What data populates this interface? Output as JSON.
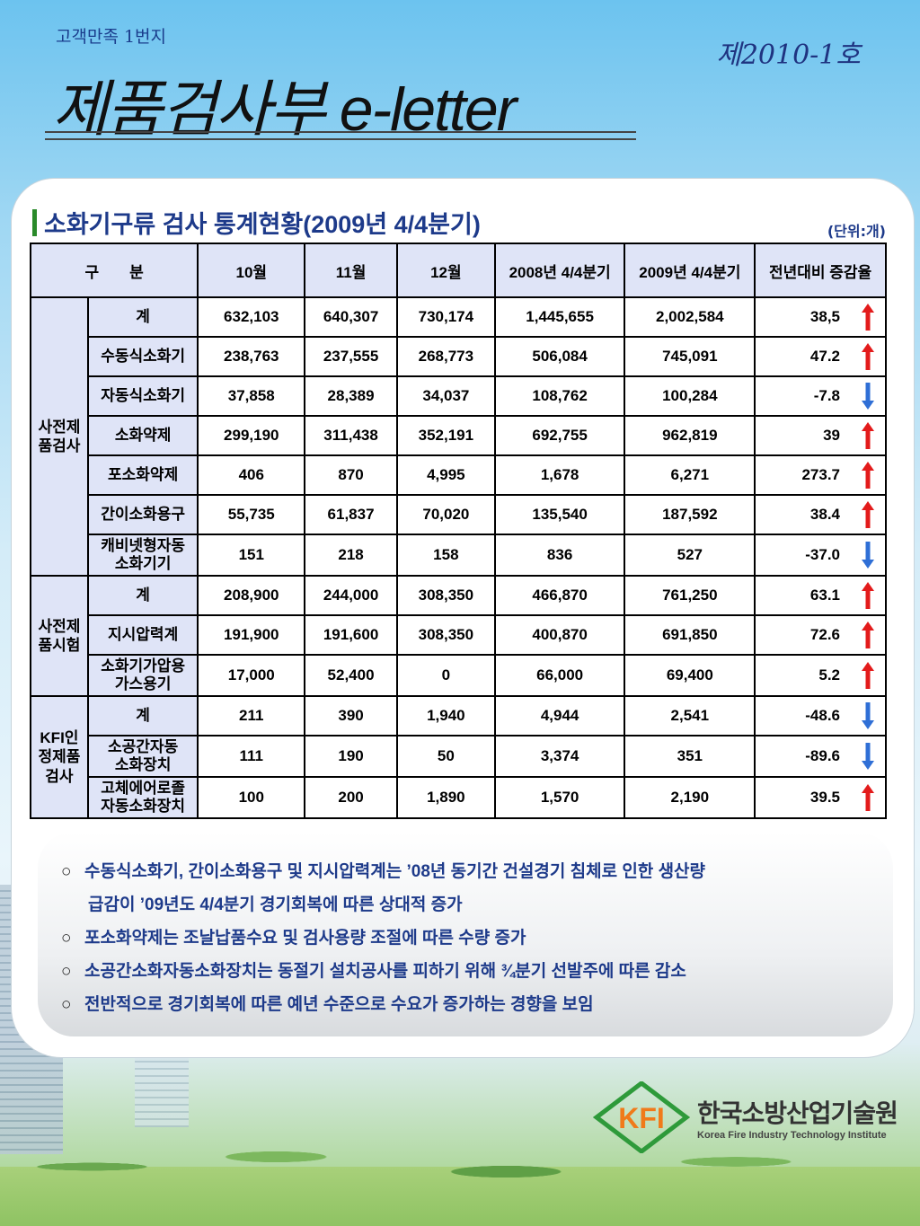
{
  "header": {
    "subtitle": "고객만족 1번지",
    "issue": "제2010-1호",
    "title": "제품검사부 e-letter"
  },
  "section": {
    "title": "소화기구류 검사 통계현황(2009년 4/4분기)",
    "unit": "(단위:개)"
  },
  "table": {
    "headers": [
      "구　　분",
      "10월",
      "11월",
      "12월",
      "2008년 4/4분기",
      "2009년 4/4분기",
      "전년대비 증감율"
    ],
    "groups": [
      {
        "label": "사전제\n품검사",
        "rows": [
          {
            "name": "계",
            "oct": "632,103",
            "nov": "640,307",
            "dec": "730,174",
            "q2008": "1,445,655",
            "q2009": "2,002,584",
            "change": "38,5",
            "trend": "up"
          },
          {
            "name": "수동식소화기",
            "oct": "238,763",
            "nov": "237,555",
            "dec": "268,773",
            "q2008": "506,084",
            "q2009": "745,091",
            "change": "47.2",
            "trend": "up"
          },
          {
            "name": "자동식소화기",
            "oct": "37,858",
            "nov": "28,389",
            "dec": "34,037",
            "q2008": "108,762",
            "q2009": "100,284",
            "change": "-7.8",
            "trend": "down"
          },
          {
            "name": "소화약제",
            "oct": "299,190",
            "nov": "311,438",
            "dec": "352,191",
            "q2008": "692,755",
            "q2009": "962,819",
            "change": "39",
            "trend": "up"
          },
          {
            "name": "포소화약제",
            "oct": "406",
            "nov": "870",
            "dec": "4,995",
            "q2008": "1,678",
            "q2009": "6,271",
            "change": "273.7",
            "trend": "up"
          },
          {
            "name": "간이소화용구",
            "oct": "55,735",
            "nov": "61,837",
            "dec": "70,020",
            "q2008": "135,540",
            "q2009": "187,592",
            "change": "38.4",
            "trend": "up"
          },
          {
            "name": "캐비넷형자동\n소화기기",
            "oct": "151",
            "nov": "218",
            "dec": "158",
            "q2008": "836",
            "q2009": "527",
            "change": "-37.0",
            "trend": "down"
          }
        ]
      },
      {
        "label": "사전제\n품시험",
        "rows": [
          {
            "name": "계",
            "oct": "208,900",
            "nov": "244,000",
            "dec": "308,350",
            "q2008": "466,870",
            "q2009": "761,250",
            "change": "63.1",
            "trend": "up"
          },
          {
            "name": "지시압력계",
            "oct": "191,900",
            "nov": "191,600",
            "dec": "308,350",
            "q2008": "400,870",
            "q2009": "691,850",
            "change": "72.6",
            "trend": "up"
          },
          {
            "name": "소화기가압용\n가스용기",
            "oct": "17,000",
            "nov": "52,400",
            "dec": "0",
            "q2008": "66,000",
            "q2009": "69,400",
            "change": "5.2",
            "trend": "up"
          }
        ]
      },
      {
        "label": "KFI인\n정제품\n검사",
        "rows": [
          {
            "name": "계",
            "oct": "211",
            "nov": "390",
            "dec": "1,940",
            "q2008": "4,944",
            "q2009": "2,541",
            "change": "-48.6",
            "trend": "down"
          },
          {
            "name": "소공간자동\n소화장치",
            "oct": "111",
            "nov": "190",
            "dec": "50",
            "q2008": "3,374",
            "q2009": "351",
            "change": "-89.6",
            "trend": "down"
          },
          {
            "name": "고체에어로졸\n자동소화장치",
            "oct": "100",
            "nov": "200",
            "dec": "1,890",
            "q2008": "1,570",
            "q2009": "2,190",
            "change": "39.5",
            "trend": "up"
          }
        ]
      }
    ]
  },
  "notes": [
    "수동식소화기, 간이소화용구 및 지시압력계는 ’08년 동기간  건설경기 침체로 인한 생산량",
    "급감이 ’09년도 4/4분기 경기회복에 따른 상대적 증가",
    "포소화약제는 조날납품수요 및 검사용량 조절에 따른  수량 증가",
    "소공간소화자동소화장치는 동절기 설치공사를 피하기 위해 ¾분기 선발주에 따른 감소",
    "전반적으로 경기회복에 따른 예년 수준으로 수요가 증가하는 경향을 보임"
  ],
  "bullet": "○",
  "logo": {
    "mark": "KFI",
    "name_kr": "한국소방산업기술원",
    "name_en": "Korea Fire Industry Technology Institute"
  },
  "colors": {
    "up": "#e31b1b",
    "down": "#2f6fd6",
    "header_bg": "#dfe4f7",
    "title_blue": "#1d3a8a"
  }
}
